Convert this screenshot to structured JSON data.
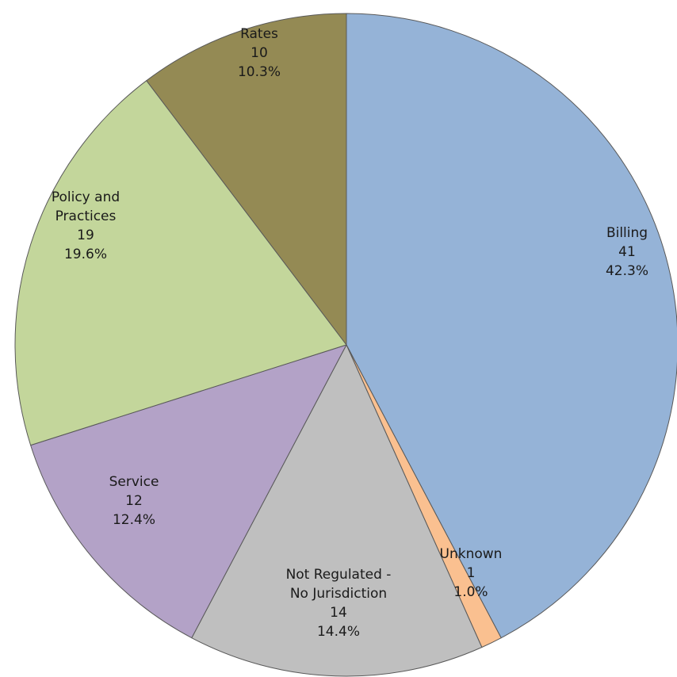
{
  "chart_data": {
    "type": "pie",
    "title": "",
    "start_angle_deg": 0,
    "direction": "clockwise",
    "slices": [
      {
        "key": "billing",
        "label_lines": [
          "Billing"
        ],
        "value": 41,
        "percent": "42.3%",
        "color": "#95b3d7"
      },
      {
        "key": "unknown",
        "label_lines": [
          "Unknown"
        ],
        "value": 1,
        "percent": "1.0%",
        "color": "#fac090"
      },
      {
        "key": "not-regulated",
        "label_lines": [
          "Not Regulated -",
          "No Jurisdiction"
        ],
        "value": 14,
        "percent": "14.4%",
        "color": "#bfbfbf"
      },
      {
        "key": "service",
        "label_lines": [
          "Service"
        ],
        "value": 12,
        "percent": "12.4%",
        "color": "#b3a2c7"
      },
      {
        "key": "policy-and-practices",
        "label_lines": [
          "Policy and",
          "Practices"
        ],
        "value": 19,
        "percent": "19.6%",
        "color": "#c3d69b"
      },
      {
        "key": "rates",
        "label_lines": [
          "Rates"
        ],
        "value": 10,
        "percent": "10.3%",
        "color": "#948a54"
      }
    ]
  }
}
